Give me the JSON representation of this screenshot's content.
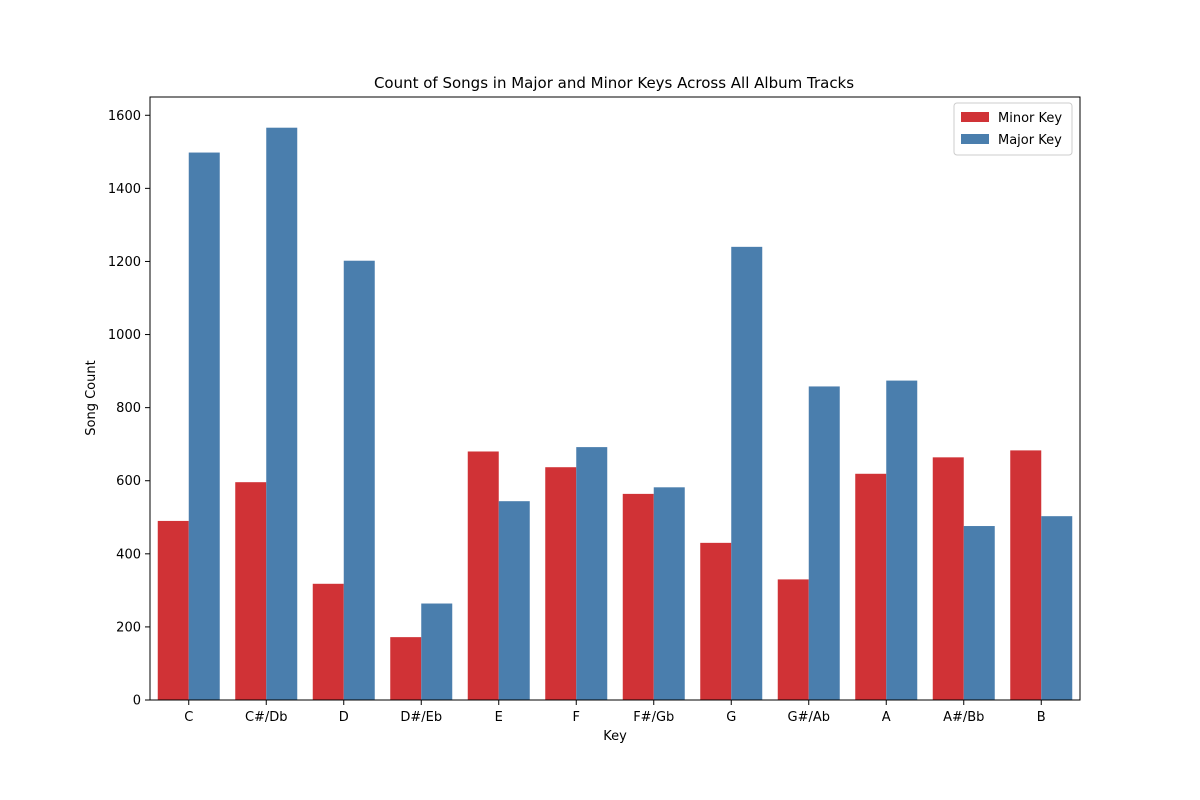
{
  "chart_data": {
    "type": "bar",
    "title": "Count of Songs in Major and Minor Keys Across All Album Tracks",
    "xlabel": "Key",
    "ylabel": "Song Count",
    "categories": [
      "C",
      "C#/Db",
      "D",
      "D#/Eb",
      "E",
      "F",
      "F#/Gb",
      "G",
      "G#/Ab",
      "A",
      "A#/Bb",
      "B"
    ],
    "series": [
      {
        "name": "Minor Key",
        "color": "#d03236",
        "values": [
          490,
          596,
          318,
          172,
          680,
          637,
          564,
          430,
          330,
          619,
          664,
          683
        ]
      },
      {
        "name": "Major Key",
        "color": "#4a7ead",
        "values": [
          1498,
          1566,
          1202,
          264,
          544,
          692,
          582,
          1240,
          858,
          874,
          476,
          503
        ]
      }
    ],
    "ylim": [
      0,
      1650
    ],
    "yticks": [
      0,
      200,
      400,
      600,
      800,
      1000,
      1200,
      1400,
      1600
    ],
    "grid": false,
    "legend_position": "top-right"
  }
}
